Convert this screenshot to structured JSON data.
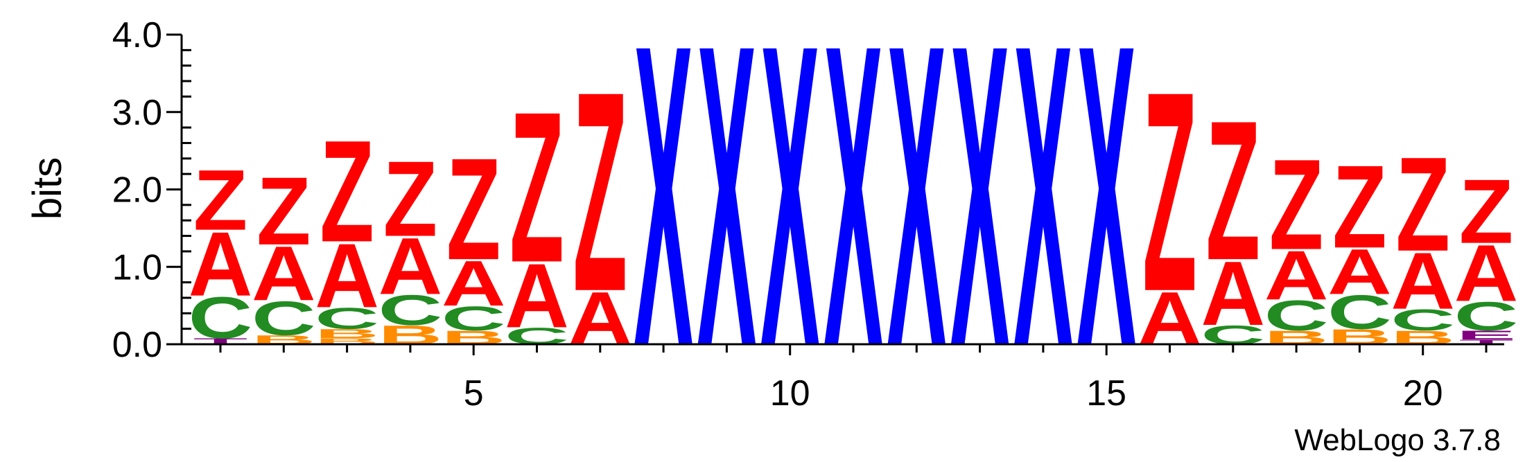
{
  "chart_data": {
    "type": "sequence-logo",
    "ylabel": "bits",
    "ylim": [
      0,
      4.0
    ],
    "y_ticks": [
      "0.0",
      "1.0",
      "2.0",
      "3.0",
      "4.0"
    ],
    "x_tick_positions": [
      5,
      10,
      15,
      20
    ],
    "x_ticks": [
      "5",
      "10",
      "15",
      "20"
    ],
    "colors": {
      "A": "#ff0000",
      "Z": "#ff0000",
      "X": "#0000ff",
      "C": "#228b22",
      "B": "#ff8c00",
      "T": "#800080",
      "E": "#800080"
    },
    "positions": [
      {
        "pos": 1,
        "stack": [
          {
            "l": "T",
            "h": 0.08
          },
          {
            "l": "C",
            "h": 0.55
          },
          {
            "l": "A",
            "h": 0.85
          },
          {
            "l": "Z",
            "h": 0.8
          }
        ]
      },
      {
        "pos": 2,
        "stack": [
          {
            "l": "B",
            "h": 0.12
          },
          {
            "l": "C",
            "h": 0.45
          },
          {
            "l": "A",
            "h": 0.72
          },
          {
            "l": "Z",
            "h": 0.9
          }
        ]
      },
      {
        "pos": 3,
        "stack": [
          {
            "l": "B",
            "h": 0.08
          },
          {
            "l": "B",
            "h": 0.12
          },
          {
            "l": "C",
            "h": 0.28
          },
          {
            "l": "A",
            "h": 0.85
          },
          {
            "l": "Z",
            "h": 1.35
          }
        ]
      },
      {
        "pos": 4,
        "stack": [
          {
            "l": "B",
            "h": 0.25
          },
          {
            "l": "C",
            "h": 0.4
          },
          {
            "l": "A",
            "h": 0.75
          },
          {
            "l": "Z",
            "h": 1.0
          }
        ]
      },
      {
        "pos": 5,
        "stack": [
          {
            "l": "B",
            "h": 0.18
          },
          {
            "l": "C",
            "h": 0.32
          },
          {
            "l": "A",
            "h": 0.6
          },
          {
            "l": "Z",
            "h": 1.35
          }
        ]
      },
      {
        "pos": 6,
        "stack": [
          {
            "l": "C",
            "h": 0.22
          },
          {
            "l": "A",
            "h": 0.85
          },
          {
            "l": "Z",
            "h": 2.0
          }
        ]
      },
      {
        "pos": 7,
        "stack": [
          {
            "l": "A",
            "h": 0.7
          },
          {
            "l": "Z",
            "h": 2.65
          }
        ]
      },
      {
        "pos": 8,
        "stack": [
          {
            "l": "X",
            "h": 4.0
          }
        ]
      },
      {
        "pos": 9,
        "stack": [
          {
            "l": "X",
            "h": 4.0
          }
        ]
      },
      {
        "pos": 10,
        "stack": [
          {
            "l": "X",
            "h": 4.0
          }
        ]
      },
      {
        "pos": 11,
        "stack": [
          {
            "l": "X",
            "h": 4.0
          }
        ]
      },
      {
        "pos": 12,
        "stack": [
          {
            "l": "X",
            "h": 4.0
          }
        ]
      },
      {
        "pos": 13,
        "stack": [
          {
            "l": "X",
            "h": 4.0
          }
        ]
      },
      {
        "pos": 14,
        "stack": [
          {
            "l": "X",
            "h": 4.0
          }
        ]
      },
      {
        "pos": 15,
        "stack": [
          {
            "l": "X",
            "h": 4.0
          }
        ]
      },
      {
        "pos": 16,
        "stack": [
          {
            "l": "A",
            "h": 0.7
          },
          {
            "l": "Z",
            "h": 2.65
          }
        ]
      },
      {
        "pos": 17,
        "stack": [
          {
            "l": "C",
            "h": 0.25
          },
          {
            "l": "A",
            "h": 0.85
          },
          {
            "l": "Z",
            "h": 1.85
          }
        ]
      },
      {
        "pos": 18,
        "stack": [
          {
            "l": "B",
            "h": 0.18
          },
          {
            "l": "C",
            "h": 0.4
          },
          {
            "l": "A",
            "h": 0.65
          },
          {
            "l": "Z",
            "h": 1.2
          }
        ]
      },
      {
        "pos": 19,
        "stack": [
          {
            "l": "B",
            "h": 0.2
          },
          {
            "l": "C",
            "h": 0.45
          },
          {
            "l": "A",
            "h": 0.6
          },
          {
            "l": "Z",
            "h": 1.1
          }
        ]
      },
      {
        "pos": 20,
        "stack": [
          {
            "l": "B",
            "h": 0.18
          },
          {
            "l": "C",
            "h": 0.28
          },
          {
            "l": "A",
            "h": 0.75
          },
          {
            "l": "Z",
            "h": 1.25
          }
        ]
      },
      {
        "pos": 21,
        "stack": [
          {
            "l": "T",
            "h": 0.06
          },
          {
            "l": "E",
            "h": 0.12
          },
          {
            "l": "C",
            "h": 0.38
          },
          {
            "l": "A",
            "h": 0.75
          },
          {
            "l": "Z",
            "h": 0.85
          }
        ]
      }
    ]
  },
  "footer": {
    "version": "WebLogo 3.7.8"
  }
}
